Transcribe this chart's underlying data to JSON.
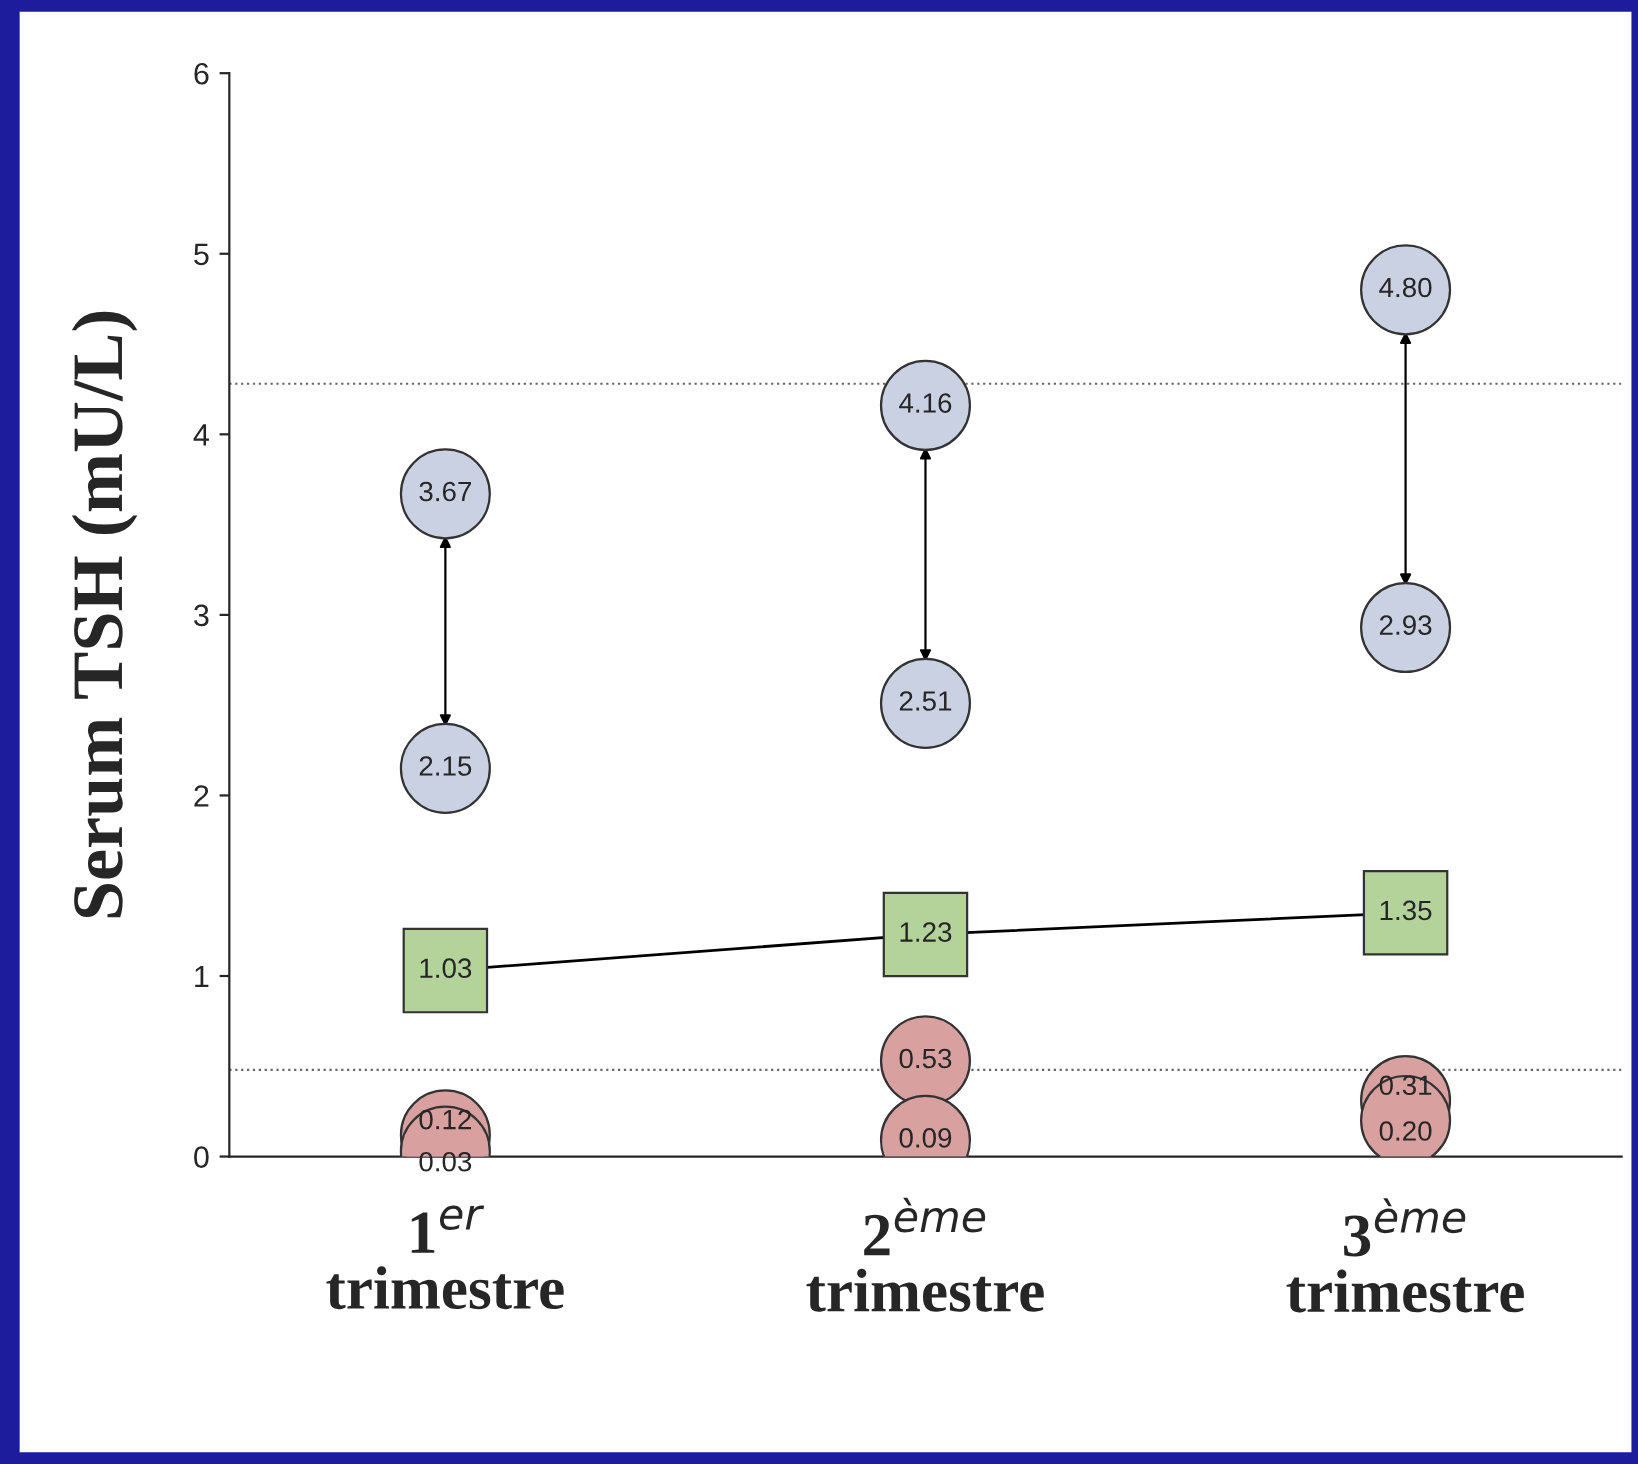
{
  "chart_data": {
    "type": "scatter",
    "ylabel": "Serum TSH (mU/L)",
    "categories": [
      "1$^{er}$\ntrimestre",
      "2$^{ème}$\ntrimestre",
      "3$^{ème}$\ntrimestre"
    ],
    "series": [
      {
        "marker": "circle",
        "color": "#c9d1e3",
        "values": [
          3.67,
          4.16,
          4.8
        ],
        "value_labels": [
          "3.67",
          "4.16",
          "4.80"
        ]
      },
      {
        "marker": "circle",
        "color": "#c9d1e3",
        "values": [
          2.15,
          2.51,
          2.93
        ],
        "value_labels": [
          "2.15",
          "2.51",
          "2.93"
        ]
      },
      {
        "type": "line",
        "marker": "square",
        "color": "#b4d39a",
        "values": [
          1.03,
          1.23,
          1.35
        ],
        "value_labels": [
          "1.03",
          "1.23",
          "1.35"
        ]
      },
      {
        "marker": "circle",
        "color": "#d9a0a0",
        "values": [
          0.12,
          0.53,
          0.31
        ],
        "value_labels": [
          "0.12",
          "0.53",
          "0.31"
        ]
      },
      {
        "marker": "circle",
        "color": "#d9a0a0",
        "values": [
          0.03,
          0.09,
          0.2
        ],
        "value_labels": [
          "0.03",
          "0.09",
          "0.20"
        ]
      }
    ],
    "ylim": [
      0,
      6
    ],
    "yticks": [
      0,
      1,
      2,
      3,
      4,
      5,
      6
    ],
    "ref_lines": [
      {
        "axis": "y",
        "value": 4.28,
        "line_style": "dotted",
        "color": "#666666"
      },
      {
        "axis": "y",
        "value": 0.48,
        "line_style": "dotted",
        "color": "#666666"
      }
    ]
  }
}
